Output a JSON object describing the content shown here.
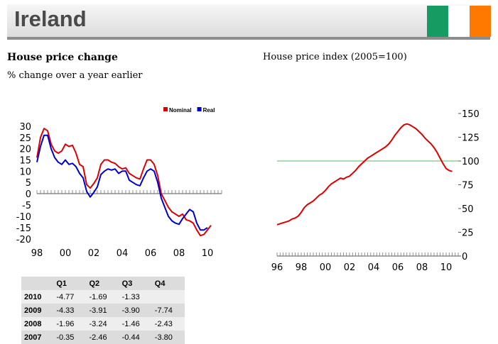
{
  "header": {
    "title": "Ireland",
    "flag_colors": [
      "#169b62",
      "#ffffff",
      "#ff7900"
    ]
  },
  "left_panel": {
    "title": "House price change",
    "subtitle": "% change over a year earlier"
  },
  "right_panel": {
    "title": "House price index (2005=100)"
  },
  "chart_data": [
    {
      "type": "line",
      "title": "House price change",
      "subtitle": "% change over a year earlier",
      "xlim": [
        1998,
        2011
      ],
      "ylim": [
        -20,
        30
      ],
      "x_ticks": [
        "98",
        "00",
        "02",
        "04",
        "06",
        "08",
        "10"
      ],
      "y_ticks": [
        "30",
        "25",
        "20",
        "15",
        "10",
        "5",
        "0",
        "-5",
        "-10",
        "-15",
        "-20"
      ],
      "legend": {
        "position": "top-right",
        "entries": [
          "Nominal",
          "Real"
        ]
      },
      "series": [
        {
          "name": "Nominal",
          "color": "#dd0000",
          "points": [
            [
              1998.0,
              16
            ],
            [
              1998.25,
              25
            ],
            [
              1998.5,
              29
            ],
            [
              1998.75,
              28
            ],
            [
              1999.0,
              22
            ],
            [
              1999.25,
              19
            ],
            [
              1999.5,
              18
            ],
            [
              1999.75,
              19
            ],
            [
              2000.0,
              22
            ],
            [
              2000.25,
              21
            ],
            [
              2000.5,
              21.5
            ],
            [
              2000.75,
              18
            ],
            [
              2001.0,
              13
            ],
            [
              2001.25,
              12
            ],
            [
              2001.5,
              4
            ],
            [
              2001.75,
              2.5
            ],
            [
              2002.0,
              4.5
            ],
            [
              2002.25,
              7
            ],
            [
              2002.5,
              13
            ],
            [
              2002.75,
              15
            ],
            [
              2003.0,
              15
            ],
            [
              2003.25,
              14
            ],
            [
              2003.5,
              13.5
            ],
            [
              2003.75,
              12
            ],
            [
              2004.0,
              11
            ],
            [
              2004.25,
              11.5
            ],
            [
              2004.5,
              9
            ],
            [
              2004.75,
              8
            ],
            [
              2005.0,
              7
            ],
            [
              2005.25,
              6.5
            ],
            [
              2005.5,
              11
            ],
            [
              2005.75,
              15
            ],
            [
              2006.0,
              15
            ],
            [
              2006.25,
              13
            ],
            [
              2006.5,
              8
            ],
            [
              2006.75,
              0
            ],
            [
              2007.0,
              -3
            ],
            [
              2007.25,
              -6
            ],
            [
              2007.5,
              -8
            ],
            [
              2007.75,
              -9
            ],
            [
              2008.0,
              -10
            ],
            [
              2008.25,
              -9
            ],
            [
              2008.5,
              -11.5
            ],
            [
              2008.75,
              -12
            ],
            [
              2009.0,
              -13
            ],
            [
              2009.25,
              -16
            ],
            [
              2009.5,
              -18.5
            ],
            [
              2009.75,
              -18
            ],
            [
              2010.0,
              -16
            ],
            [
              2010.25,
              -14
            ]
          ]
        },
        {
          "name": "Real",
          "color": "#0000cc",
          "points": [
            [
              1998.0,
              14
            ],
            [
              1998.25,
              21
            ],
            [
              1998.5,
              26
            ],
            [
              1998.75,
              26
            ],
            [
              1999.0,
              20
            ],
            [
              1999.25,
              16
            ],
            [
              1999.5,
              14
            ],
            [
              1999.75,
              13
            ],
            [
              2000.0,
              15
            ],
            [
              2000.25,
              13
            ],
            [
              2000.5,
              13.5
            ],
            [
              2000.75,
              12
            ],
            [
              2001.0,
              9
            ],
            [
              2001.25,
              7
            ],
            [
              2001.5,
              1
            ],
            [
              2001.75,
              -1.5
            ],
            [
              2002.0,
              0.5
            ],
            [
              2002.25,
              3
            ],
            [
              2002.5,
              8.5
            ],
            [
              2002.75,
              10
            ],
            [
              2003.0,
              11
            ],
            [
              2003.25,
              10.5
            ],
            [
              2003.5,
              11
            ],
            [
              2003.75,
              9
            ],
            [
              2004.0,
              10
            ],
            [
              2004.25,
              10
            ],
            [
              2004.5,
              6
            ],
            [
              2004.75,
              5
            ],
            [
              2005.0,
              4
            ],
            [
              2005.25,
              3.5
            ],
            [
              2005.5,
              7
            ],
            [
              2005.75,
              10
            ],
            [
              2006.0,
              11
            ],
            [
              2006.25,
              10
            ],
            [
              2006.5,
              5
            ],
            [
              2006.75,
              -2
            ],
            [
              2007.0,
              -6
            ],
            [
              2007.25,
              -10
            ],
            [
              2007.5,
              -12
            ],
            [
              2007.75,
              -13
            ],
            [
              2008.0,
              -13.5
            ],
            [
              2008.25,
              -11
            ],
            [
              2008.5,
              -9
            ],
            [
              2008.75,
              -7
            ],
            [
              2009.0,
              -8
            ],
            [
              2009.25,
              -13
            ],
            [
              2009.5,
              -16
            ],
            [
              2009.75,
              -16
            ],
            [
              2010.0,
              -15
            ]
          ]
        }
      ],
      "table": {
        "columns": [
          "",
          "Q1",
          "Q2",
          "Q3",
          "Q4"
        ],
        "rows": [
          [
            "2010",
            "-4.77",
            "-1.69",
            "-1.33",
            ""
          ],
          [
            "2009",
            "-4.33",
            "-3.91",
            "-3.90",
            "-7.74"
          ],
          [
            "2008",
            "-1.96",
            "-3.24",
            "-1.46",
            "-2.43"
          ],
          [
            "2007",
            "-0.35",
            "-2.46",
            "-0.44",
            "-3.80"
          ]
        ]
      }
    },
    {
      "type": "line",
      "title": "House price index (2005=100)",
      "xlim": [
        1996,
        2011
      ],
      "ylim": [
        0,
        150
      ],
      "x_ticks": [
        "96",
        "98",
        "00",
        "02",
        "04",
        "06",
        "08",
        "10"
      ],
      "y_ticks": [
        "150",
        "125",
        "100",
        "75",
        "50",
        "25",
        "0"
      ],
      "reference_line": {
        "y": 100,
        "color": "#8fd18f"
      },
      "series": [
        {
          "name": "House price index",
          "color": "#dd0000",
          "points": [
            [
              1996.0,
              33
            ],
            [
              1996.25,
              34
            ],
            [
              1996.5,
              35
            ],
            [
              1996.75,
              36
            ],
            [
              1997.0,
              37
            ],
            [
              1997.25,
              39
            ],
            [
              1997.5,
              40
            ],
            [
              1997.75,
              42
            ],
            [
              1998.0,
              46
            ],
            [
              1998.25,
              51
            ],
            [
              1998.5,
              54
            ],
            [
              1998.75,
              56
            ],
            [
              1999.0,
              58
            ],
            [
              1999.25,
              61
            ],
            [
              1999.5,
              64
            ],
            [
              1999.75,
              66
            ],
            [
              2000.0,
              69
            ],
            [
              2000.25,
              73
            ],
            [
              2000.5,
              76
            ],
            [
              2000.75,
              78
            ],
            [
              2001.0,
              80
            ],
            [
              2001.25,
              82
            ],
            [
              2001.5,
              81
            ],
            [
              2001.75,
              83
            ],
            [
              2002.0,
              84
            ],
            [
              2002.25,
              87
            ],
            [
              2002.5,
              90
            ],
            [
              2002.75,
              94
            ],
            [
              2003.0,
              97
            ],
            [
              2003.25,
              100
            ],
            [
              2003.5,
              103
            ],
            [
              2003.75,
              105
            ],
            [
              2004.0,
              107
            ],
            [
              2004.25,
              109
            ],
            [
              2004.5,
              111
            ],
            [
              2004.75,
              113
            ],
            [
              2005.0,
              115
            ],
            [
              2005.25,
              118
            ],
            [
              2005.5,
              122
            ],
            [
              2005.75,
              127
            ],
            [
              2006.0,
              131
            ],
            [
              2006.25,
              135
            ],
            [
              2006.5,
              138
            ],
            [
              2006.75,
              139
            ],
            [
              2007.0,
              138
            ],
            [
              2007.25,
              136
            ],
            [
              2007.5,
              134
            ],
            [
              2007.75,
              131
            ],
            [
              2008.0,
              128
            ],
            [
              2008.25,
              124
            ],
            [
              2008.5,
              121
            ],
            [
              2008.75,
              118
            ],
            [
              2009.0,
              114
            ],
            [
              2009.25,
              109
            ],
            [
              2009.5,
              103
            ],
            [
              2009.75,
              97
            ],
            [
              2010.0,
              92
            ],
            [
              2010.25,
              90
            ],
            [
              2010.5,
              89
            ]
          ]
        }
      ]
    }
  ]
}
